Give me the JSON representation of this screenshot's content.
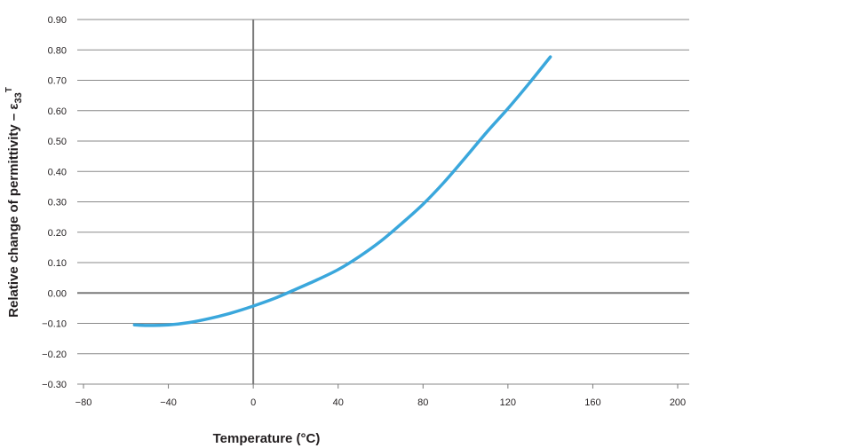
{
  "chart_data": {
    "type": "line",
    "xlabel": "Temperature (°C)",
    "ylabel": {
      "text": "Relative change of permittivity  – ε",
      "subscript": "33",
      "superscript": "T"
    },
    "xlim": [
      -80,
      200
    ],
    "ylim": [
      -0.3,
      0.9
    ],
    "x_ticks": [
      "−80",
      "−40",
      "0",
      "40",
      "80",
      "120",
      "160",
      "200"
    ],
    "x_tick_values": [
      -80,
      -40,
      0,
      40,
      80,
      120,
      160,
      200
    ],
    "y_ticks": [
      "0.90",
      "0.80",
      "0.70",
      "0.60",
      "0.50",
      "0.40",
      "0.30",
      "0.20",
      "0.10",
      "0.00",
      "−0.10",
      "−0.20",
      "−0.30"
    ],
    "y_tick_values": [
      0.9,
      0.8,
      0.7,
      0.6,
      0.5,
      0.4,
      0.3,
      0.2,
      0.1,
      0.0,
      -0.1,
      -0.2,
      -0.3
    ],
    "grid": "horizontal",
    "series": [
      {
        "color": "#3aa7dc",
        "x": [
          -56,
          -50,
          -40,
          -30,
          -20,
          -10,
          0,
          10,
          20,
          30,
          40,
          50,
          60,
          70,
          80,
          90,
          100,
          110,
          120,
          130,
          140
        ],
        "y": [
          -0.105,
          -0.107,
          -0.105,
          -0.097,
          -0.083,
          -0.065,
          -0.043,
          -0.018,
          0.012,
          0.043,
          0.077,
          0.12,
          0.17,
          0.229,
          0.292,
          0.365,
          0.446,
          0.529,
          0.607,
          0.69,
          0.777
        ]
      }
    ]
  }
}
